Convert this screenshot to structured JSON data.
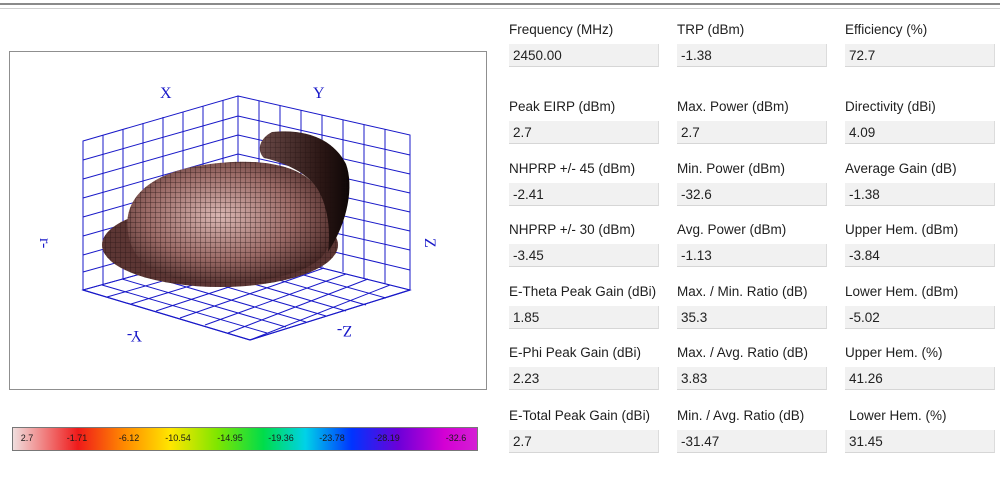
{
  "colors": {
    "plot_axes": "#1818c8",
    "pattern_surface": "#8c5a55",
    "field_background": "#f1f1f1"
  },
  "plot": {
    "axis_labels": {
      "x": "X",
      "y": "Y",
      "z": "Z",
      "neg_x": "r-",
      "neg_y": "Y-",
      "neg_z": "Z-"
    }
  },
  "colorbar": {
    "ticks": [
      "2.7",
      "-1.71",
      "-6.12",
      "-10.54",
      "-14.95",
      "-19.36",
      "-23.78",
      "-28.19",
      "-32.6"
    ]
  },
  "fields": [
    {
      "label": "Frequency (MHz)",
      "value": "2450.00"
    },
    {
      "label": "TRP (dBm)",
      "value": "-1.38"
    },
    {
      "label": "Efficiency (%)",
      "value": "72.7"
    },
    {
      "label": "Peak EIRP (dBm)",
      "value": "2.7"
    },
    {
      "label": "Max. Power (dBm)",
      "value": "2.7"
    },
    {
      "label": "Directivity (dBi)",
      "value": "4.09"
    },
    {
      "label": "NHPRP +/- 45 (dBm)",
      "value": "-2.41"
    },
    {
      "label": "Min. Power (dBm)",
      "value": "-32.6"
    },
    {
      "label": "Average Gain (dB)",
      "value": "-1.38"
    },
    {
      "label": "NHPRP +/- 30 (dBm)",
      "value": "-3.45"
    },
    {
      "label": "Avg. Power (dBm)",
      "value": "-1.13"
    },
    {
      "label": "Upper Hem. (dBm)",
      "value": "-3.84"
    },
    {
      "label": "E-Theta Peak Gain (dBi)",
      "value": "1.85"
    },
    {
      "label": "Max. / Min. Ratio (dB)",
      "value": "35.3"
    },
    {
      "label": "Lower Hem. (dBm)",
      "value": "-5.02"
    },
    {
      "label": "E-Phi Peak Gain (dBi)",
      "value": "2.23"
    },
    {
      "label": "Max. / Avg. Ratio (dB)",
      "value": "3.83"
    },
    {
      "label": "Upper Hem. (%)",
      "value": "41.26"
    },
    {
      "label": "E-Total Peak Gain (dBi)",
      "value": "2.7"
    },
    {
      "label": "Min. / Avg. Ratio (dB)",
      "value": "-31.47"
    },
    {
      "label": "Lower Hem. (%)",
      "value": "31.45"
    }
  ]
}
